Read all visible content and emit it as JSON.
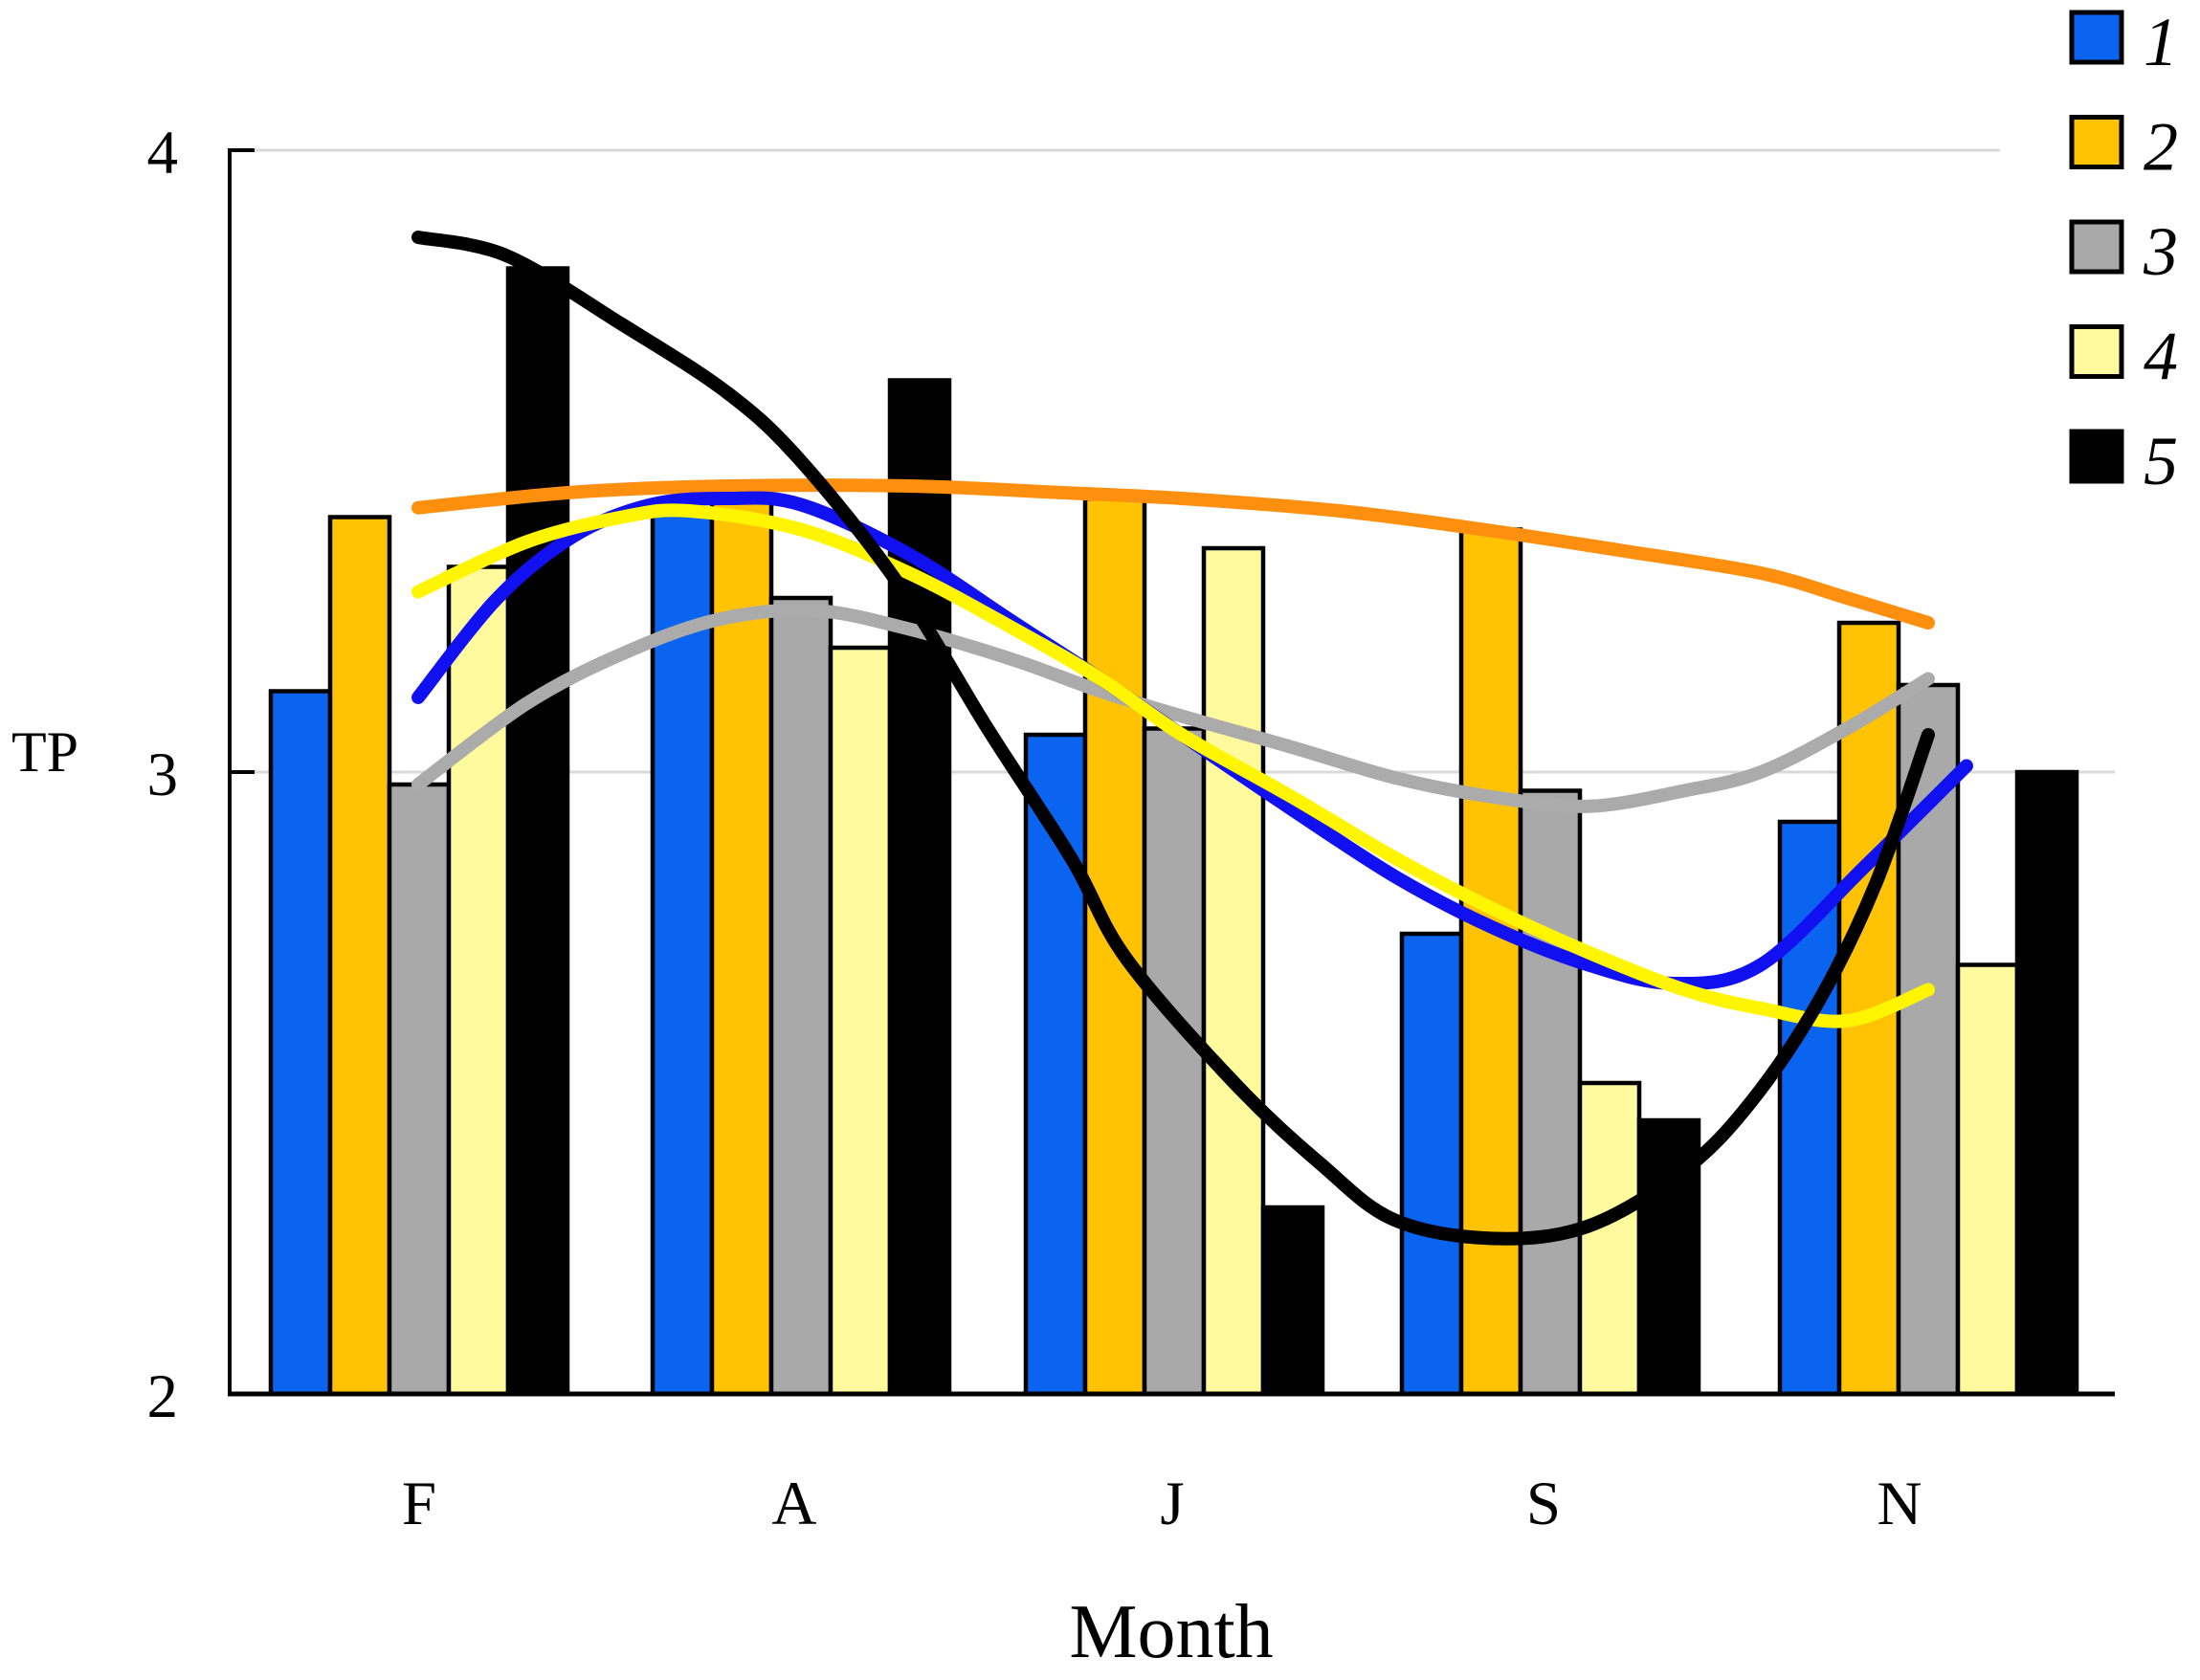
{
  "chart_data": {
    "type": "bar",
    "subtype": "grouped bars with smooth trend lines overlaid",
    "title": "",
    "xlabel": "Month",
    "ylabel": "TP",
    "categories": [
      "F",
      "A",
      "J",
      "S",
      "N"
    ],
    "ylim": [
      2,
      4
    ],
    "yticks": [
      4,
      3,
      2
    ],
    "grid": "light horizontal gridlines at y=4 and y=3",
    "legend_position": "top-right",
    "series": [
      {
        "name": "1",
        "color": "#0A64F0",
        "values": [
          3.13,
          3.42,
          3.06,
          2.74,
          2.92
        ]
      },
      {
        "name": "2",
        "color": "#FFC303",
        "values": [
          3.41,
          3.46,
          3.44,
          3.39,
          3.24
        ]
      },
      {
        "name": "3",
        "color": "#A9A9A9",
        "values": [
          2.98,
          3.28,
          3.07,
          2.97,
          3.14
        ]
      },
      {
        "name": "4",
        "color": "#FFFA9E",
        "values": [
          3.33,
          3.2,
          3.36,
          2.5,
          2.69
        ]
      },
      {
        "name": "5",
        "color": "#000000",
        "values": [
          3.81,
          3.63,
          2.3,
          2.44,
          3.0
        ]
      }
    ],
    "trend_lines": [
      {
        "series": "2",
        "color": "#FF8F0F",
        "points": [
          [
            437,
            3.425
          ],
          [
            600,
            3.45
          ],
          [
            760,
            3.46
          ],
          [
            950,
            3.46
          ],
          [
            1100,
            3.45
          ],
          [
            1235,
            3.44
          ],
          [
            1400,
            3.42
          ],
          [
            1550,
            3.39
          ],
          [
            1700,
            3.355
          ],
          [
            1840,
            3.32
          ],
          [
            1930,
            3.28
          ],
          [
            2015,
            3.24
          ]
        ]
      },
      {
        "series": "3",
        "color": "#ABABAB",
        "points": [
          [
            437,
            2.98
          ],
          [
            550,
            3.11
          ],
          [
            650,
            3.19
          ],
          [
            750,
            3.245
          ],
          [
            850,
            3.26
          ],
          [
            950,
            3.23
          ],
          [
            1060,
            3.18
          ],
          [
            1150,
            3.13
          ],
          [
            1235,
            3.09
          ],
          [
            1350,
            3.04
          ],
          [
            1460,
            2.99
          ],
          [
            1560,
            2.96
          ],
          [
            1660,
            2.945
          ],
          [
            1760,
            2.97
          ],
          [
            1840,
            3.0
          ],
          [
            1930,
            3.07
          ],
          [
            2015,
            3.15
          ]
        ]
      },
      {
        "series": "1",
        "color": "#1010F0",
        "points": [
          [
            437,
            3.12
          ],
          [
            520,
            3.28
          ],
          [
            600,
            3.38
          ],
          [
            680,
            3.43
          ],
          [
            760,
            3.44
          ],
          [
            837,
            3.43
          ],
          [
            950,
            3.35
          ],
          [
            1060,
            3.24
          ],
          [
            1150,
            3.15
          ],
          [
            1235,
            3.06
          ],
          [
            1350,
            2.94
          ],
          [
            1460,
            2.83
          ],
          [
            1560,
            2.75
          ],
          [
            1660,
            2.69
          ],
          [
            1750,
            2.66
          ],
          [
            1840,
            2.69
          ],
          [
            1950,
            2.85
          ],
          [
            2055,
            3.01
          ]
        ]
      },
      {
        "series": "4",
        "color": "#FFF500",
        "points": [
          [
            437,
            3.29
          ],
          [
            550,
            3.37
          ],
          [
            650,
            3.41
          ],
          [
            720,
            3.42
          ],
          [
            837,
            3.39
          ],
          [
            950,
            3.32
          ],
          [
            1060,
            3.23
          ],
          [
            1150,
            3.15
          ],
          [
            1235,
            3.06
          ],
          [
            1350,
            2.96
          ],
          [
            1460,
            2.86
          ],
          [
            1560,
            2.78
          ],
          [
            1660,
            2.71
          ],
          [
            1760,
            2.65
          ],
          [
            1840,
            2.62
          ],
          [
            1930,
            2.6
          ],
          [
            2015,
            2.65
          ]
        ]
      },
      {
        "series": "5",
        "color": "#000000",
        "points": [
          [
            437,
            3.86
          ],
          [
            530,
            3.83
          ],
          [
            650,
            3.72
          ],
          [
            760,
            3.61
          ],
          [
            837,
            3.5
          ],
          [
            940,
            3.3
          ],
          [
            1032,
            3.07
          ],
          [
            1120,
            2.86
          ],
          [
            1177,
            2.7
          ],
          [
            1290,
            2.5
          ],
          [
            1380,
            2.37
          ],
          [
            1457,
            2.28
          ],
          [
            1560,
            2.25
          ],
          [
            1660,
            2.27
          ],
          [
            1760,
            2.36
          ],
          [
            1830,
            2.47
          ],
          [
            1900,
            2.63
          ],
          [
            1960,
            2.82
          ],
          [
            2015,
            3.06
          ]
        ]
      }
    ]
  },
  "colors": {
    "background": "#FFFFFF",
    "gridline": "#D9D9D9",
    "axis": "#000000",
    "bar_outline": "#000000"
  }
}
